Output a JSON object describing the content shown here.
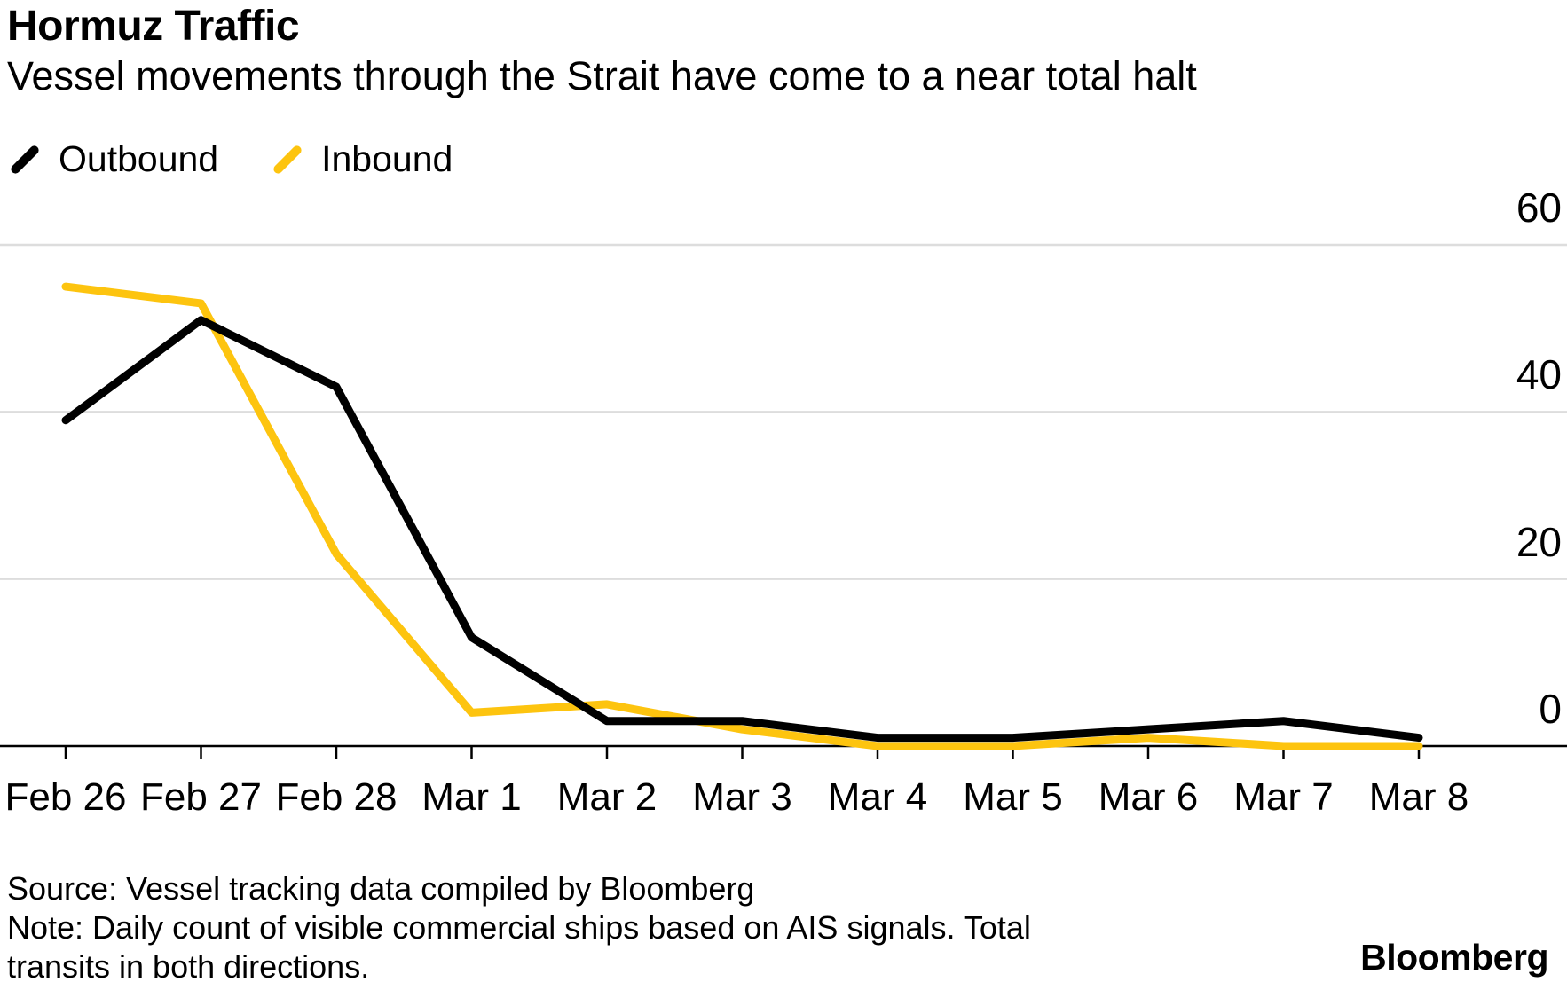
{
  "header": {
    "title": "Hormuz Traffic",
    "subtitle": "Vessel movements through the Strait have come to a near total halt"
  },
  "legend": {
    "items": [
      {
        "label": "Outbound",
        "color": "#000000"
      },
      {
        "label": "Inbound",
        "color": "#FDC40F"
      }
    ]
  },
  "chart_data": {
    "type": "line",
    "title": "Hormuz Traffic",
    "subtitle": "Vessel movements through the Strait have come to a near total halt",
    "categories": [
      "Feb 26",
      "Feb 27",
      "Feb 28",
      "Mar 1",
      "Mar 2",
      "Mar 3",
      "Mar 4",
      "Mar 5",
      "Mar 6",
      "Mar 7",
      "Mar 8"
    ],
    "series": [
      {
        "name": "Outbound",
        "color": "#000000",
        "values": [
          39,
          51,
          43,
          13,
          3,
          3,
          1,
          1,
          2,
          3,
          1
        ]
      },
      {
        "name": "Inbound",
        "color": "#FDC40F",
        "values": [
          55,
          53,
          23,
          4,
          5,
          2,
          0,
          0,
          1,
          0,
          0
        ]
      }
    ],
    "ylim": [
      0,
      60
    ],
    "yticks": [
      0,
      20,
      40,
      60
    ],
    "ytick_side": "right",
    "grid": "horizontal",
    "legend_position": "top-left"
  },
  "colors": {
    "grid": "#DDDDDD",
    "axis": "#000000",
    "background": "#FFFFFF"
  },
  "footer": {
    "source": "Source: Vessel tracking data compiled by Bloomberg",
    "note_line1": "Note: Daily count of visible commercial ships based on AIS signals. Total",
    "note_line2": "transits in both directions.",
    "logo": "Bloomberg"
  }
}
